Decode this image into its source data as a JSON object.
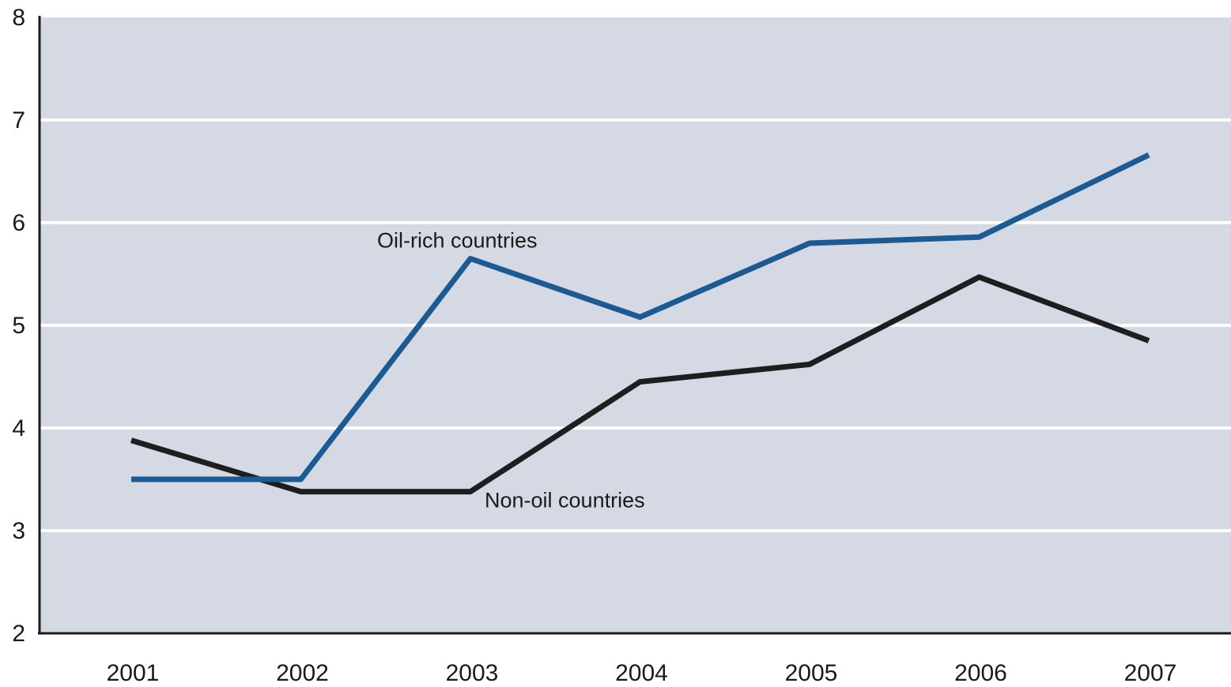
{
  "chart_data": {
    "type": "line",
    "title": "",
    "xlabel": "",
    "ylabel": "",
    "categories": [
      "2001",
      "2002",
      "2003",
      "2004",
      "2005",
      "2006",
      "2007"
    ],
    "ylim": [
      2,
      8
    ],
    "yticks": [
      "2",
      "3",
      "4",
      "5",
      "6",
      "7",
      "8"
    ],
    "grid": "horizontal",
    "legend": "none",
    "background_color": "#d4d9e3",
    "series": [
      {
        "name": "Oil-rich countries",
        "color": "#1b5a92",
        "values": [
          3.5,
          3.5,
          5.65,
          5.08,
          5.8,
          5.86,
          6.66
        ]
      },
      {
        "name": "Non-oil countries",
        "color": "#1e1e1e",
        "values": [
          3.88,
          3.38,
          3.38,
          4.45,
          4.62,
          5.47,
          4.85
        ]
      }
    ]
  }
}
